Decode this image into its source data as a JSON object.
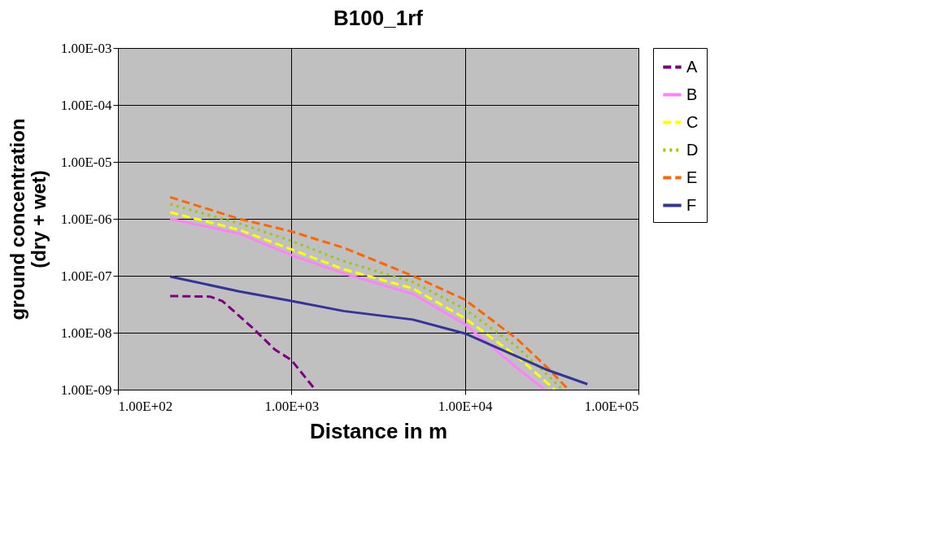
{
  "chart_data": {
    "type": "line",
    "title": "B100_1rf",
    "xlabel": "Distance in m",
    "ylabel": "ground concentration\n(dry + wet)",
    "log": "xy",
    "grid": true,
    "legend": "right",
    "xlim": [
      100,
      100000
    ],
    "xticks": [
      {
        "value": 100,
        "label": "1.00E+02"
      },
      {
        "value": 1000,
        "label": "1.00E+03"
      },
      {
        "value": 10000,
        "label": "1.00E+04"
      },
      {
        "value": 100000,
        "label": "1.00E+05"
      }
    ],
    "ylim": [
      1e-09,
      0.001
    ],
    "yticks": [
      {
        "value": 1e-09,
        "label": "1.00E-09"
      },
      {
        "value": 1e-08,
        "label": "1.00E-08"
      },
      {
        "value": 1e-07,
        "label": "1.00E-07"
      },
      {
        "value": 1e-06,
        "label": "1.00E-06"
      },
      {
        "value": 1e-05,
        "label": "1.00E-05"
      },
      {
        "value": 0.0001,
        "label": "1.00E-04"
      },
      {
        "value": 0.001,
        "label": "1.00E-03"
      }
    ],
    "series": [
      {
        "name": "A",
        "color": "#800080",
        "line_style": "dashed",
        "x": [
          200,
          340,
          400,
          600,
          800,
          1000,
          1370
        ],
        "values": [
          4.4e-08,
          4.3e-08,
          3.6e-08,
          1.2e-08,
          5.1e-09,
          3.3e-09,
          1e-09
        ]
      },
      {
        "name": "B",
        "color": "#ff80ff",
        "line_style": "solid",
        "x": [
          200,
          500,
          1000,
          2000,
          5000,
          10000,
          20000,
          28800
        ],
        "values": [
          1e-06,
          5.5e-07,
          2.3e-07,
          1.1e-07,
          4.8e-08,
          1.4e-08,
          2.4e-09,
          1e-09
        ]
      },
      {
        "name": "C",
        "color": "#ffff00",
        "line_style": "dashed",
        "x": [
          200,
          500,
          1000,
          2000,
          5000,
          10000,
          20000,
          33000
        ],
        "values": [
          1.3e-06,
          6.4e-07,
          2.9e-07,
          1.3e-07,
          6e-08,
          1.8e-08,
          3.8e-09,
          1e-09
        ]
      },
      {
        "name": "D",
        "color": "#99cc00",
        "line_style": "dotted",
        "x": [
          200,
          500,
          1000,
          2000,
          5000,
          10000,
          20000,
          30000,
          36400
        ],
        "values": [
          1.8e-06,
          8.3e-07,
          4.1e-07,
          1.8e-07,
          7.8e-08,
          2.6e-08,
          5.6e-09,
          1.8e-09,
          1e-09
        ]
      },
      {
        "name": "E",
        "color": "#ff6600",
        "line_style": "dashed",
        "x": [
          200,
          500,
          1000,
          2000,
          5000,
          10000,
          20000,
          30000,
          39500
        ],
        "values": [
          2.4e-06,
          1e-06,
          6e-07,
          3.1e-07,
          1e-07,
          3.8e-08,
          7.7e-09,
          2.4e-09,
          1e-09
        ]
      },
      {
        "name": "F",
        "color": "#333399",
        "line_style": "solid",
        "x": [
          200,
          500,
          1000,
          2000,
          5000,
          10000,
          20000,
          30000,
          50800
        ],
        "values": [
          9.7e-08,
          5.3e-08,
          3.6e-08,
          2.4e-08,
          1.7e-08,
          9.7e-09,
          3.8e-09,
          2.2e-09,
          1.25e-09
        ]
      }
    ]
  }
}
